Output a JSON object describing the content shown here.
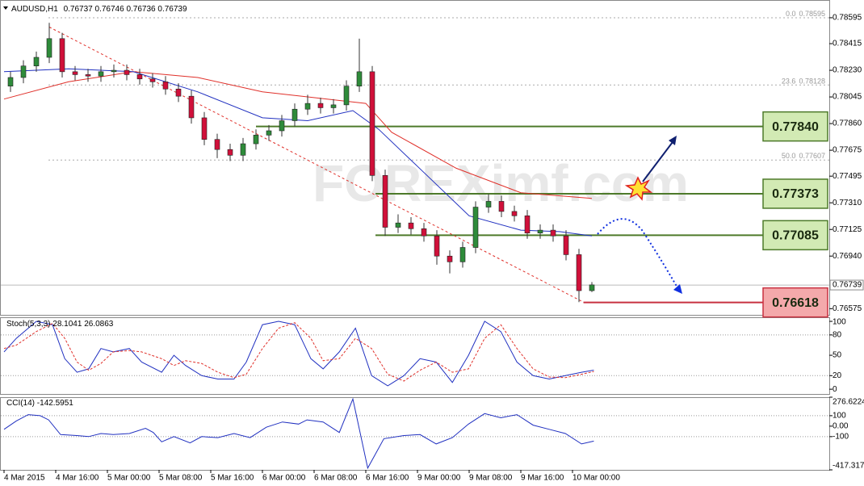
{
  "chart_data": [
    {
      "type": "candlestick",
      "title": "AUDUSD,H1",
      "header_ohlc": [
        0.76737,
        0.76746,
        0.76736,
        0.76739
      ],
      "watermark": "FOREXimf.com",
      "up_color": "#2e8b3a",
      "down_color": "#d0103a",
      "x": [
        1,
        3,
        5,
        7,
        9,
        11,
        13,
        15,
        17,
        19,
        21,
        23,
        25,
        27,
        29,
        31,
        33,
        35,
        37,
        39,
        41,
        43,
        45,
        47,
        49,
        51,
        53,
        55,
        57,
        59,
        61,
        63,
        65,
        67,
        69,
        71,
        73,
        75,
        77,
        79,
        81,
        83,
        85,
        87,
        89,
        91
      ],
      "open": [
        0.7812,
        0.7818,
        0.7826,
        0.7832,
        0.7845,
        0.7822,
        0.782,
        0.7819,
        0.7822,
        0.7823,
        0.782,
        0.7817,
        0.7815,
        0.781,
        0.7805,
        0.779,
        0.7775,
        0.7768,
        0.7764,
        0.7772,
        0.7778,
        0.7781,
        0.7788,
        0.7796,
        0.78,
        0.7797,
        0.7799,
        0.7812,
        0.7822,
        0.775,
        0.7714,
        0.7717,
        0.7713,
        0.7708,
        0.7694,
        0.769,
        0.77,
        0.7728,
        0.7732,
        0.7725,
        0.7722,
        0.771,
        0.7712,
        0.7708,
        0.7695,
        0.767
      ],
      "high": [
        0.7822,
        0.783,
        0.7836,
        0.7856,
        0.7849,
        0.7826,
        0.7824,
        0.7826,
        0.7827,
        0.7827,
        0.7824,
        0.7821,
        0.7819,
        0.7814,
        0.7809,
        0.7794,
        0.7779,
        0.7772,
        0.7776,
        0.7782,
        0.7785,
        0.7792,
        0.78,
        0.7806,
        0.7804,
        0.7803,
        0.7816,
        0.7845,
        0.7826,
        0.7754,
        0.7723,
        0.7721,
        0.7717,
        0.7712,
        0.7698,
        0.7704,
        0.7732,
        0.7737,
        0.7736,
        0.7729,
        0.7726,
        0.7716,
        0.7716,
        0.7712,
        0.7699,
        0.7676
      ],
      "low": [
        0.7808,
        0.7814,
        0.7822,
        0.7828,
        0.7818,
        0.7816,
        0.7815,
        0.7815,
        0.7818,
        0.7816,
        0.7813,
        0.7811,
        0.7806,
        0.7801,
        0.7786,
        0.7771,
        0.7762,
        0.776,
        0.776,
        0.7768,
        0.7774,
        0.7777,
        0.7784,
        0.7792,
        0.7793,
        0.7793,
        0.7795,
        0.7808,
        0.7746,
        0.7708,
        0.771,
        0.7709,
        0.7704,
        0.7688,
        0.7682,
        0.7686,
        0.7696,
        0.7724,
        0.7721,
        0.7718,
        0.7706,
        0.7706,
        0.7704,
        0.7691,
        0.7662,
        0.7669
      ],
      "close": [
        0.7818,
        0.7826,
        0.7832,
        0.7845,
        0.7822,
        0.782,
        0.7819,
        0.7822,
        0.7823,
        0.782,
        0.7817,
        0.7815,
        0.781,
        0.7805,
        0.779,
        0.7775,
        0.7768,
        0.7764,
        0.7772,
        0.7778,
        0.7781,
        0.7788,
        0.7796,
        0.78,
        0.7797,
        0.7799,
        0.7812,
        0.7822,
        0.775,
        0.7714,
        0.7717,
        0.7713,
        0.7708,
        0.7694,
        0.769,
        0.77,
        0.7728,
        0.7732,
        0.7725,
        0.7722,
        0.771,
        0.7712,
        0.7708,
        0.7695,
        0.767,
        0.7674
      ],
      "overlays": [
        {
          "color": "#e0302a",
          "x": [
            0,
            10,
            20,
            30,
            40,
            50,
            56,
            60,
            70,
            80,
            91
          ],
          "values": [
            0.7803,
            0.7815,
            0.7822,
            0.7818,
            0.7808,
            0.7803,
            0.78,
            0.778,
            0.7755,
            0.7738,
            0.7734
          ]
        },
        {
          "color": "#2030c0",
          "x": [
            0,
            10,
            20,
            30,
            40,
            47,
            54,
            58,
            65,
            72,
            80,
            86,
            91
          ],
          "values": [
            0.7822,
            0.7824,
            0.7822,
            0.7808,
            0.779,
            0.7788,
            0.7795,
            0.7782,
            0.7752,
            0.7722,
            0.7712,
            0.7711,
            0.7708
          ]
        }
      ],
      "trendline": {
        "color": "#e0302a",
        "x": [
          7,
          89.7
        ],
        "values": [
          0.7853,
          0.7662
        ]
      },
      "fib": [
        {
          "level": "0.0",
          "price": 0.78595
        },
        {
          "level": "23.6",
          "price": 0.78128
        },
        {
          "level": "50.0",
          "price": 0.77607
        }
      ],
      "levels": [
        {
          "value": 0.7784,
          "label": "0.77840",
          "from": 39,
          "color": "#4d7a2a",
          "fill": "#d2eab4"
        },
        {
          "value": 0.77373,
          "label": "0.77373",
          "from": 57.5,
          "color": "#4d7a2a",
          "fill": "#d2eab4"
        },
        {
          "value": 0.77085,
          "label": "0.77085",
          "from": 57.5,
          "color": "#4d7a2a",
          "fill": "#d2eab4"
        },
        {
          "value": 0.76618,
          "label": "0.76618",
          "from": 89.7,
          "color": "#c83040",
          "fill": "#f4a9ab"
        }
      ],
      "xlim": [
        -0.625,
        127.75
      ],
      "xticks": [
        {
          "value": 0,
          "label": "4 Mar 2015"
        },
        {
          "value": 8,
          "label": "4 Mar 16:00"
        },
        {
          "value": 16,
          "label": "5 Mar 00:00"
        },
        {
          "value": 24,
          "label": "5 Mar 08:00"
        },
        {
          "value": 32,
          "label": "5 Mar 16:00"
        },
        {
          "value": 40,
          "label": "6 Mar 00:00"
        },
        {
          "value": 48,
          "label": "6 Mar 08:00"
        },
        {
          "value": 56,
          "label": "6 Mar 16:00"
        },
        {
          "value": 64,
          "label": "9 Mar 00:00"
        },
        {
          "value": 72,
          "label": "9 Mar 08:00"
        },
        {
          "value": 80,
          "label": "9 Mar 16:00"
        },
        {
          "value": 88,
          "label": "10 Mar 00:00"
        }
      ],
      "ylim": [
        0.76532,
        0.78718
      ],
      "yticks": [
        0.78595,
        0.78415,
        {
          "value": 0.7823,
          "label": "0.78230"
        },
        0.78045,
        {
          "value": 0.7786,
          "label": "0.77860"
        },
        0.77675,
        0.77495,
        {
          "value": 0.7731,
          "label": "0.77310"
        },
        0.77125,
        {
          "value": 0.7694,
          "label": "0.76940"
        },
        0.76575
      ]
    },
    {
      "type": "line",
      "title": "Stoch(5,3,3)",
      "ylim": [
        -7,
        106
      ],
      "yticks": [
        100,
        80,
        50,
        20,
        0
      ],
      "levels": [
        80,
        20
      ],
      "series": [
        {
          "color": "#2030c0",
          "x": [
            0,
            1.9,
            5,
            7.5,
            9.4,
            11.3,
            13.1,
            15,
            16.9,
            19.4,
            21.3,
            24.4,
            26.3,
            28.1,
            30.6,
            33.1,
            35.6,
            37.5,
            40,
            42.5,
            45,
            47.5,
            49.4,
            51.9,
            54.4,
            56.9,
            59.4,
            61.9,
            64.4,
            66.9,
            69.4,
            71.9,
            74.4,
            76.9,
            79.4,
            81.9,
            84.4,
            86.9,
            89.4,
            91.3
          ],
          "values": [
            55,
            75,
            100,
            95,
            45,
            25,
            30,
            60,
            55,
            60,
            40,
            25,
            50,
            35,
            20,
            15,
            15,
            40,
            95,
            100,
            95,
            45,
            30,
            55,
            90,
            20,
            5,
            20,
            45,
            40,
            10,
            50,
            100,
            85,
            40,
            20,
            15,
            20,
            25,
            28.1041
          ]
        },
        {
          "color": "#e0302a",
          "dashed": true,
          "x": [
            0,
            1.9,
            5,
            7.5,
            9.4,
            11.3,
            13.1,
            15,
            16.9,
            19.4,
            21.3,
            24.4,
            26.3,
            28.1,
            30.6,
            33.1,
            35.6,
            37.5,
            40,
            42.5,
            45,
            47.5,
            49.4,
            51.9,
            54.4,
            56.9,
            59.4,
            61.9,
            64.4,
            66.9,
            69.4,
            71.9,
            74.4,
            76.9,
            79.4,
            81.9,
            84.4,
            86.9,
            89.4,
            91.3
          ],
          "values": [
            60,
            65,
            85,
            97,
            75,
            40,
            28,
            38,
            55,
            57,
            55,
            45,
            35,
            42,
            38,
            25,
            17,
            22,
            60,
            90,
            98,
            75,
            42,
            45,
            75,
            60,
            22,
            12,
            28,
            40,
            25,
            30,
            75,
            95,
            60,
            30,
            18,
            17,
            22,
            26.0863
          ]
        }
      ]
    },
    {
      "type": "line",
      "title": "CCI(14)",
      "ylim": [
        -417.3172,
        276.6224
      ],
      "yticks": [
        276.6224,
        100,
        {
          "value": 0,
          "label": "0.00"
        },
        -100,
        -417.3172
      ],
      "levels": [
        100,
        -100
      ],
      "series": [
        {
          "color": "#2030c0",
          "x": [
            0,
            1.9,
            3.75,
            5.6,
            6.9,
            8.75,
            11.25,
            13.1,
            15,
            16.9,
            19.4,
            21.9,
            23.1,
            24.4,
            26.3,
            28.8,
            30.6,
            33.1,
            35.6,
            38.1,
            40.6,
            43.1,
            45.6,
            46.9,
            49.4,
            51.9,
            54,
            56.3,
            58.8,
            61.9,
            64.4,
            66.9,
            69.4,
            71.9,
            74.4,
            76.9,
            79.4,
            81.9,
            84.4,
            86.9,
            89.4,
            91.3
          ],
          "values": [
            -30,
            50,
            110,
            100,
            60,
            -80,
            -90,
            -100,
            -70,
            -80,
            -70,
            -20,
            -60,
            -150,
            -100,
            -160,
            -100,
            -110,
            -70,
            -110,
            -10,
            40,
            20,
            60,
            40,
            -60,
            260,
            -400,
            -120,
            -90,
            -80,
            -170,
            -110,
            20,
            120,
            80,
            110,
            10,
            -30,
            -70,
            -170,
            -142.5951
          ]
        }
      ]
    }
  ]
}
